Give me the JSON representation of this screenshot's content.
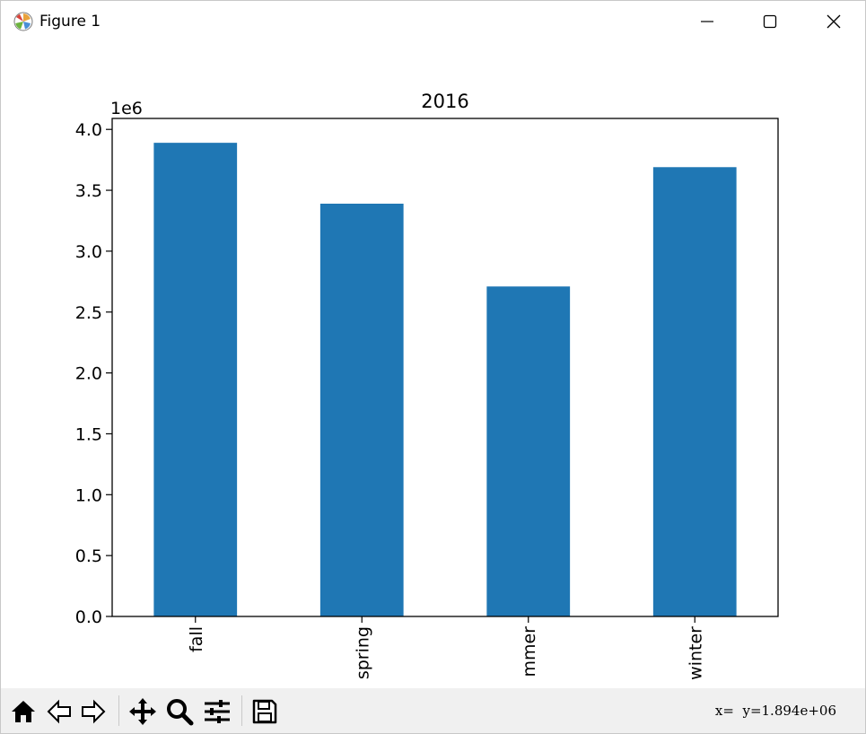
{
  "window": {
    "title": "Figure 1",
    "app_icon": "matplotlib-icon",
    "controls": [
      "minimize-icon",
      "maximize-icon",
      "close-icon"
    ]
  },
  "toolbar": {
    "tools": [
      "home-icon",
      "back-arrow-icon",
      "forward-arrow-icon",
      "pan-move-icon",
      "zoom-magnifier-icon",
      "configure-subplots-icon",
      "save-icon"
    ],
    "coords_x": "x=",
    "coords_y": "y=1.894e+06"
  },
  "chart_data": {
    "type": "bar",
    "title": "2016",
    "categories": [
      "fall",
      "spring",
      "mmer",
      "winter"
    ],
    "values": [
      3890000,
      3390000,
      2710000,
      3690000
    ],
    "ylim": [
      0,
      4090000
    ],
    "yticks": [
      0.0,
      0.5,
      1.0,
      1.5,
      2.0,
      2.5,
      3.0,
      3.5,
      4.0
    ],
    "ytick_labels": [
      "0.0",
      "0.5",
      "1.0",
      "1.5",
      "2.0",
      "2.5",
      "3.0",
      "3.5",
      "4.0"
    ],
    "y_offset_label": "1e6",
    "xlabel": "",
    "ylabel": "",
    "grid": false,
    "bar_color": "#1f77b4"
  }
}
